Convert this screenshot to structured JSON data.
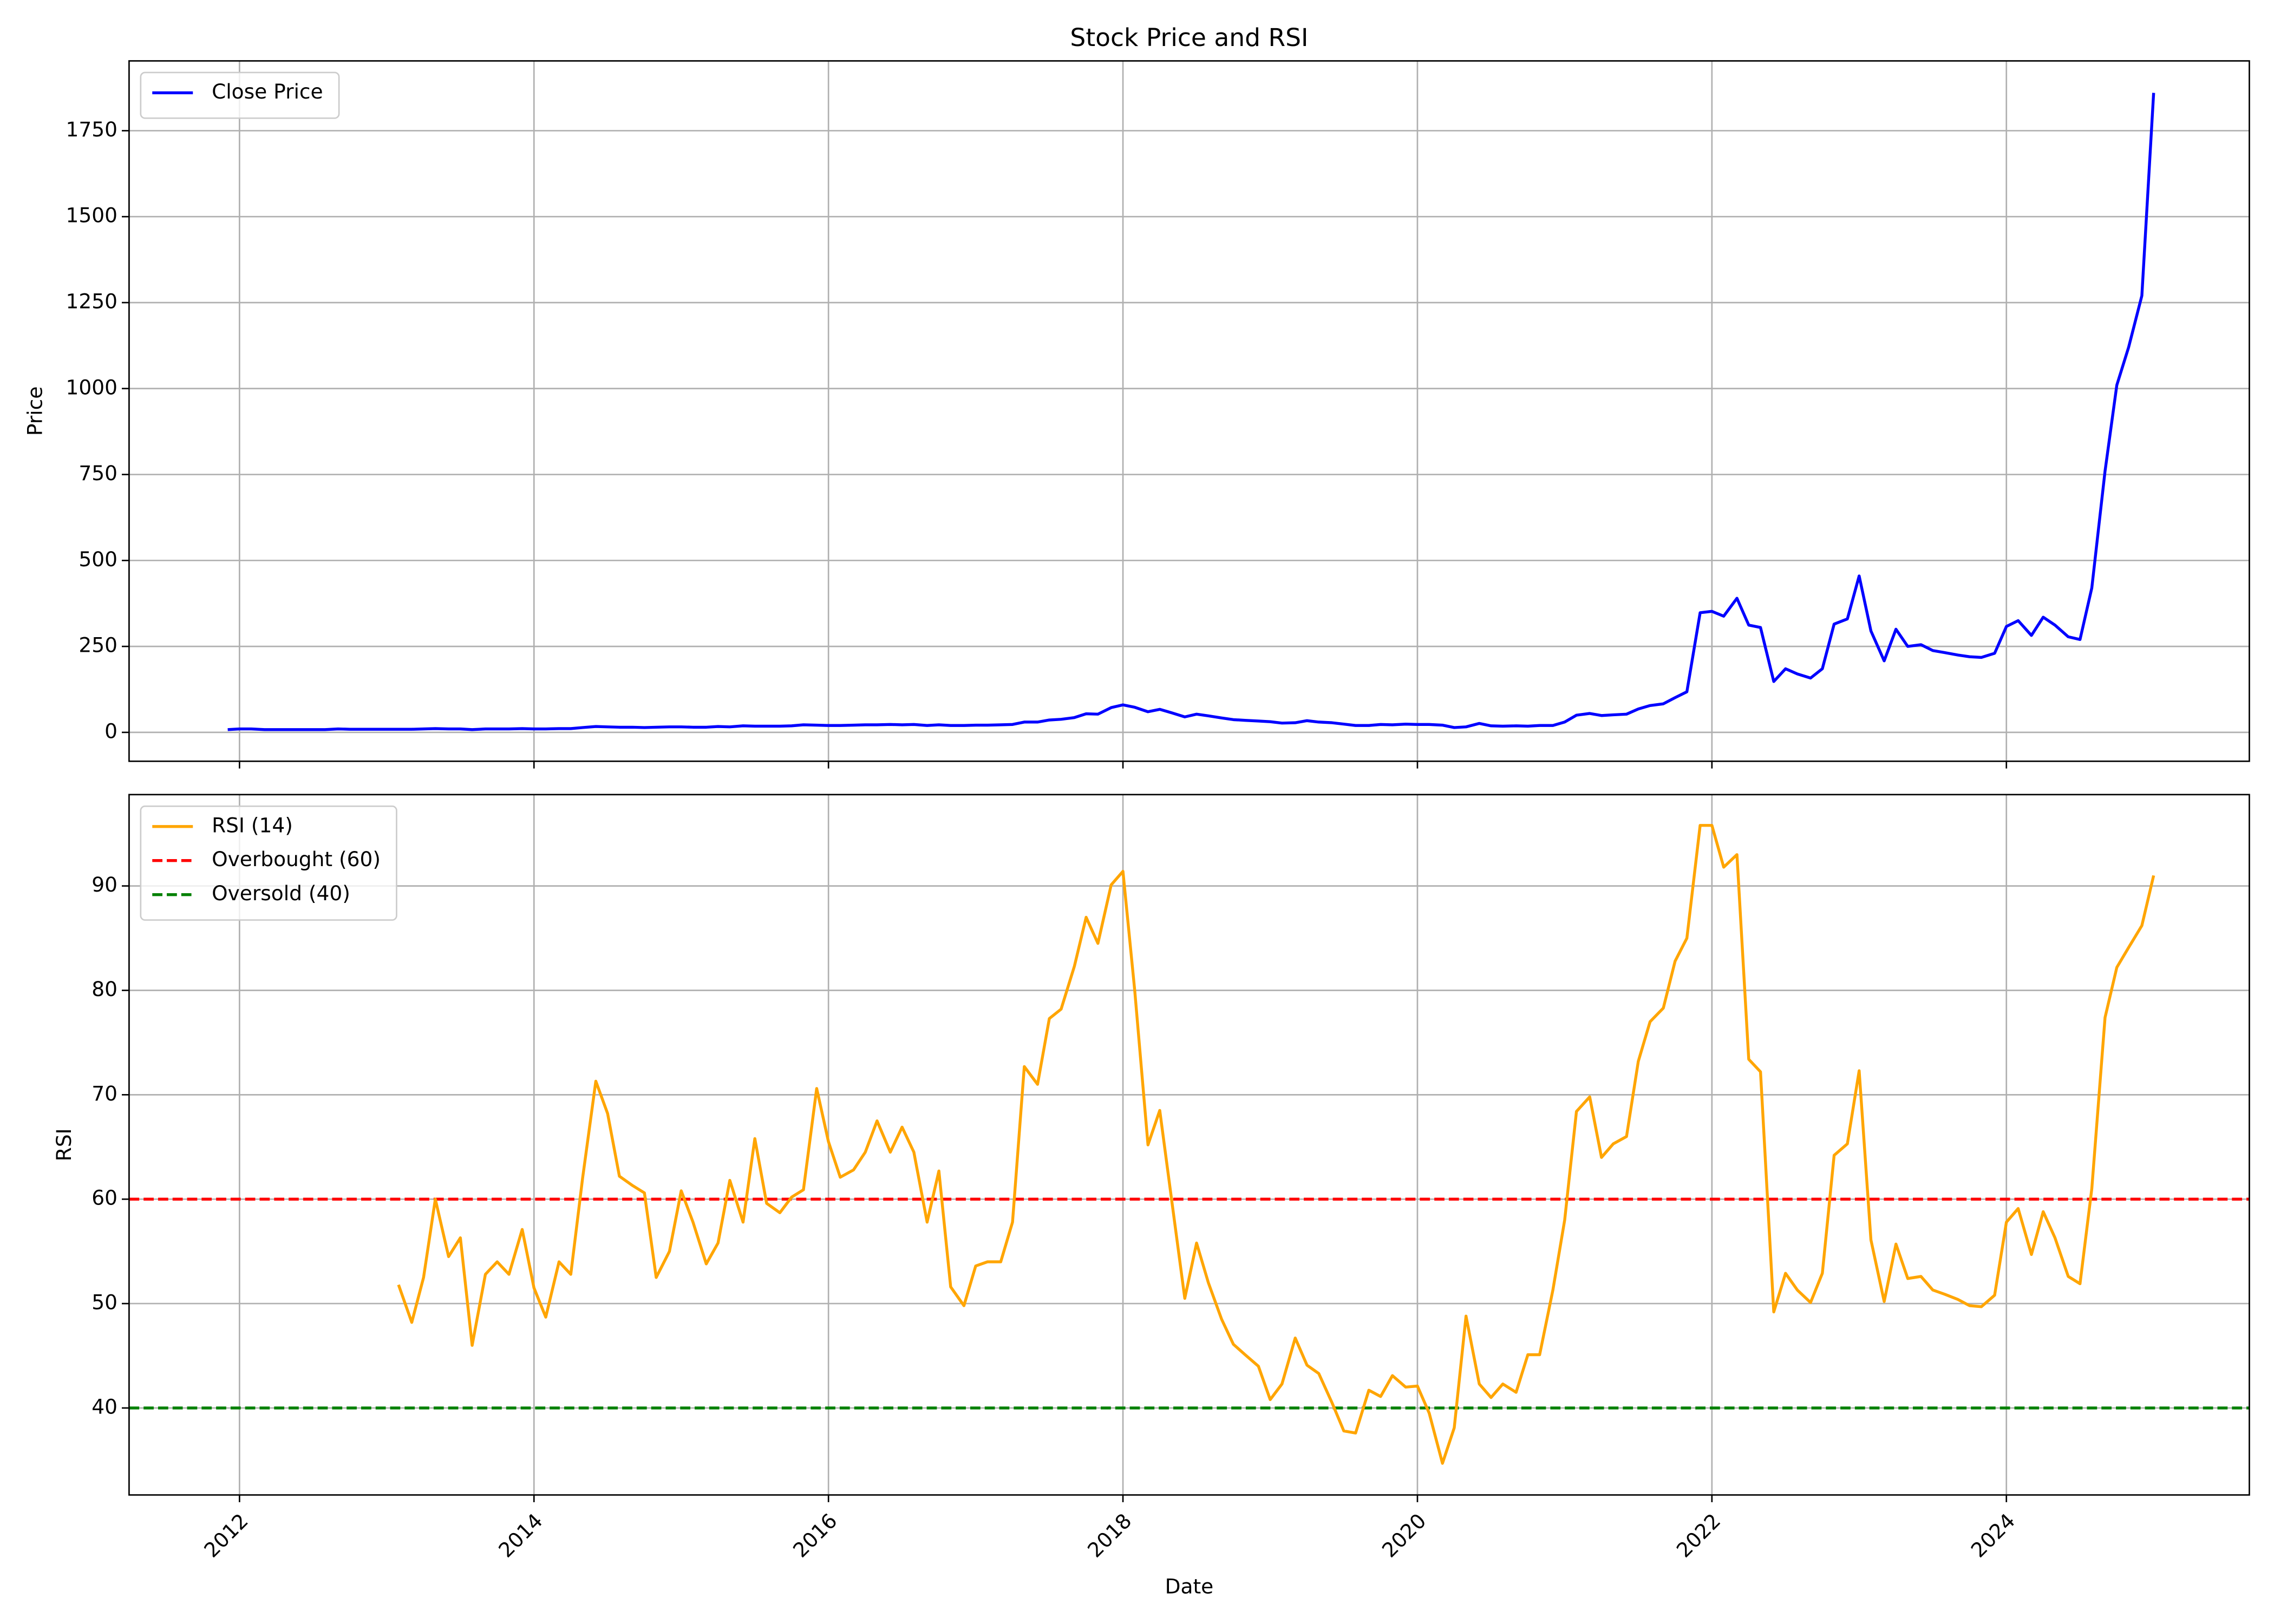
{
  "chart_data": [
    {
      "type": "line",
      "title": "Stock Price and RSI",
      "ylabel": "Price",
      "legend": "upper left",
      "grid": true,
      "xtick_labels": false,
      "x": [
        2011.92,
        2012.0,
        2012.08,
        2012.17,
        2012.25,
        2012.33,
        2012.42,
        2012.5,
        2012.58,
        2012.67,
        2012.75,
        2012.83,
        2012.92,
        2013.0,
        2013.08,
        2013.17,
        2013.25,
        2013.33,
        2013.42,
        2013.5,
        2013.58,
        2013.67,
        2013.75,
        2013.83,
        2013.92,
        2014.0,
        2014.08,
        2014.17,
        2014.25,
        2014.33,
        2014.42,
        2014.5,
        2014.58,
        2014.67,
        2014.75,
        2014.83,
        2014.92,
        2015.0,
        2015.08,
        2015.17,
        2015.25,
        2015.33,
        2015.42,
        2015.5,
        2015.58,
        2015.67,
        2015.75,
        2015.83,
        2015.92,
        2016.0,
        2016.08,
        2016.17,
        2016.25,
        2016.33,
        2016.42,
        2016.5,
        2016.58,
        2016.67,
        2016.75,
        2016.83,
        2016.92,
        2017.0,
        2017.08,
        2017.17,
        2017.25,
        2017.33,
        2017.42,
        2017.5,
        2017.58,
        2017.67,
        2017.75,
        2017.83,
        2017.92,
        2018.0,
        2018.08,
        2018.17,
        2018.25,
        2018.33,
        2018.42,
        2018.5,
        2018.58,
        2018.67,
        2018.75,
        2018.83,
        2018.92,
        2019.0,
        2019.08,
        2019.17,
        2019.25,
        2019.33,
        2019.42,
        2019.5,
        2019.58,
        2019.67,
        2019.75,
        2019.83,
        2019.92,
        2020.0,
        2020.08,
        2020.17,
        2020.25,
        2020.33,
        2020.42,
        2020.5,
        2020.58,
        2020.67,
        2020.75,
        2020.83,
        2020.92,
        2021.0,
        2021.08,
        2021.17,
        2021.25,
        2021.33,
        2021.42,
        2021.5,
        2021.58,
        2021.67,
        2021.75,
        2021.83,
        2021.92,
        2022.0,
        2022.08,
        2022.17,
        2022.25,
        2022.33,
        2022.42,
        2022.5,
        2022.58,
        2022.67,
        2022.75,
        2022.83,
        2022.92,
        2023.0,
        2023.08,
        2023.17,
        2023.25,
        2023.33,
        2023.42,
        2023.5,
        2023.58,
        2023.67,
        2023.75,
        2023.83,
        2023.92,
        2024.0,
        2024.08,
        2024.17,
        2024.25,
        2024.33,
        2024.42,
        2024.5,
        2024.58,
        2024.67,
        2024.75,
        2024.83,
        2024.92,
        2025.0
      ],
      "series": [
        {
          "name": "Close Price",
          "color": "#0000ff",
          "values": [
            8,
            10,
            10,
            8,
            8,
            8,
            8,
            8,
            8,
            10,
            9,
            9,
            9,
            9,
            9,
            9,
            10,
            11,
            10,
            10,
            8,
            10,
            10,
            10,
            11,
            10,
            10,
            11,
            11,
            14,
            17,
            16,
            15,
            15,
            14,
            15,
            16,
            16,
            15,
            15,
            17,
            16,
            19,
            18,
            18,
            18,
            19,
            22,
            21,
            20,
            20,
            21,
            22,
            22,
            23,
            22,
            23,
            20,
            22,
            20,
            20,
            21,
            21,
            22,
            23,
            30,
            30,
            36,
            38,
            43,
            54,
            53,
            72,
            80,
            73,
            60,
            67,
            57,
            45,
            53,
            48,
            42,
            37,
            35,
            33,
            31,
            27,
            28,
            34,
            30,
            28,
            24,
            20,
            20,
            23,
            22,
            24,
            23,
            23,
            21,
            14,
            16,
            26,
            19,
            18,
            19,
            18,
            20,
            20,
            30,
            50,
            55,
            49,
            51,
            53,
            68,
            78,
            83,
            101,
            118,
            348,
            352,
            338,
            390,
            312,
            305,
            148,
            185,
            170,
            158,
            185,
            315,
            330,
            455,
            295,
            208,
            300,
            250,
            255,
            238,
            232,
            225,
            220,
            218,
            230,
            308,
            325,
            282,
            335,
            312,
            278,
            270,
            420,
            760,
            1010,
            1120,
            1270,
            1860
          ]
        }
      ],
      "xlim": [
        2011.25,
        2025.65
      ],
      "xticks": [
        2012,
        2014,
        2016,
        2018,
        2020,
        2022,
        2024
      ],
      "ylim": [
        -84,
        1953
      ],
      "yticks": [
        0,
        250,
        500,
        750,
        1000,
        1250,
        1500,
        1750
      ]
    },
    {
      "type": "line",
      "xlabel": "Date",
      "ylabel": "RSI",
      "legend": "upper left",
      "grid": true,
      "xtick_labels": true,
      "x": [
        2011.92,
        2012.0,
        2012.08,
        2012.17,
        2012.25,
        2012.33,
        2012.42,
        2012.5,
        2012.58,
        2012.67,
        2012.75,
        2012.83,
        2012.92,
        2013.0,
        2013.08,
        2013.17,
        2013.25,
        2013.33,
        2013.42,
        2013.5,
        2013.58,
        2013.67,
        2013.75,
        2013.83,
        2013.92,
        2014.0,
        2014.08,
        2014.17,
        2014.25,
        2014.33,
        2014.42,
        2014.5,
        2014.58,
        2014.67,
        2014.75,
        2014.83,
        2014.92,
        2015.0,
        2015.08,
        2015.17,
        2015.25,
        2015.33,
        2015.42,
        2015.5,
        2015.58,
        2015.67,
        2015.75,
        2015.83,
        2015.92,
        2016.0,
        2016.08,
        2016.17,
        2016.25,
        2016.33,
        2016.42,
        2016.5,
        2016.58,
        2016.67,
        2016.75,
        2016.83,
        2016.92,
        2017.0,
        2017.08,
        2017.17,
        2017.25,
        2017.33,
        2017.42,
        2017.5,
        2017.58,
        2017.67,
        2017.75,
        2017.83,
        2017.92,
        2018.0,
        2018.08,
        2018.17,
        2018.25,
        2018.33,
        2018.42,
        2018.5,
        2018.58,
        2018.67,
        2018.75,
        2018.83,
        2018.92,
        2019.0,
        2019.08,
        2019.17,
        2019.25,
        2019.33,
        2019.42,
        2019.5,
        2019.58,
        2019.67,
        2019.75,
        2019.83,
        2019.92,
        2020.0,
        2020.08,
        2020.17,
        2020.25,
        2020.33,
        2020.42,
        2020.5,
        2020.58,
        2020.67,
        2020.75,
        2020.83,
        2020.92,
        2021.0,
        2021.08,
        2021.17,
        2021.25,
        2021.33,
        2021.42,
        2021.5,
        2021.58,
        2021.67,
        2021.75,
        2021.83,
        2021.92,
        2022.0,
        2022.08,
        2022.17,
        2022.25,
        2022.33,
        2022.42,
        2022.5,
        2022.58,
        2022.67,
        2022.75,
        2022.83,
        2022.92,
        2023.0,
        2023.08,
        2023.17,
        2023.25,
        2023.33,
        2023.42,
        2023.5,
        2023.58,
        2023.67,
        2023.75,
        2023.83,
        2023.92,
        2024.0,
        2024.08,
        2024.17,
        2024.25,
        2024.33,
        2024.42,
        2024.5,
        2024.58,
        2024.67,
        2024.75,
        2024.83,
        2024.92,
        2025.0
      ],
      "series": [
        {
          "name": "RSI (14)",
          "color": "#ffa500",
          "values": [
            null,
            null,
            null,
            null,
            null,
            null,
            null,
            null,
            null,
            null,
            null,
            null,
            null,
            null,
            51.8,
            48.2,
            52.5,
            60,
            54.5,
            56.3,
            46,
            52.8,
            54,
            52.8,
            57.1,
            51.5,
            48.7,
            54,
            52.8,
            62,
            71.3,
            68.2,
            62.2,
            61.3,
            60.6,
            52.5,
            55,
            60.8,
            57.8,
            53.8,
            55.8,
            61.8,
            57.8,
            65.8,
            59.6,
            58.7,
            60.2,
            60.9,
            70.6,
            65.5,
            62.1,
            62.8,
            64.5,
            67.5,
            64.5,
            66.9,
            64.5,
            57.8,
            62.7,
            51.6,
            49.8,
            53.6,
            54,
            54,
            57.8,
            72.7,
            71,
            77.3,
            78.2,
            82.3,
            87,
            84.5,
            90.1,
            91.4,
            80,
            65.2,
            68.5,
            60,
            50.5,
            55.8,
            52,
            48.5,
            46.1,
            45.1,
            44,
            40.8,
            42.3,
            46.7,
            44.1,
            43.3,
            40.5,
            37.8,
            37.6,
            41.7,
            41.1,
            43.1,
            42,
            42.1,
            39.5,
            34.7,
            38.1,
            48.8,
            42.3,
            41,
            42.3,
            41.5,
            45.1,
            45.1,
            51.3,
            58,
            68.4,
            69.8,
            64,
            65.3,
            66,
            73.2,
            77,
            78.3,
            82.8,
            85,
            95.8,
            95.8,
            91.8,
            93,
            73.4,
            72.2,
            49.2,
            52.9,
            51.3,
            50.1,
            52.9,
            64.2,
            65.3,
            72.3,
            56.1,
            50.2,
            55.7,
            52.4,
            52.6,
            51.3,
            50.9,
            50.4,
            49.8,
            49.7,
            50.8,
            57.8,
            59.1,
            54.7,
            58.8,
            56.3,
            52.6,
            51.9,
            61,
            77.4,
            82.2,
            84.1,
            86.2,
            91
          ]
        }
      ],
      "hlines": [
        {
          "name": "Overbought (60)",
          "value": 60,
          "color": "#ff0000",
          "style": "dashed"
        },
        {
          "name": "Oversold (40)",
          "value": 40,
          "color": "#008000",
          "style": "dashed"
        }
      ],
      "xlim": [
        2011.25,
        2025.65
      ],
      "xticks": [
        2012,
        2014,
        2016,
        2018,
        2020,
        2022,
        2024
      ],
      "ylim": [
        31.67,
        98.75
      ],
      "yticks": [
        40,
        50,
        60,
        70,
        80,
        90
      ]
    }
  ]
}
